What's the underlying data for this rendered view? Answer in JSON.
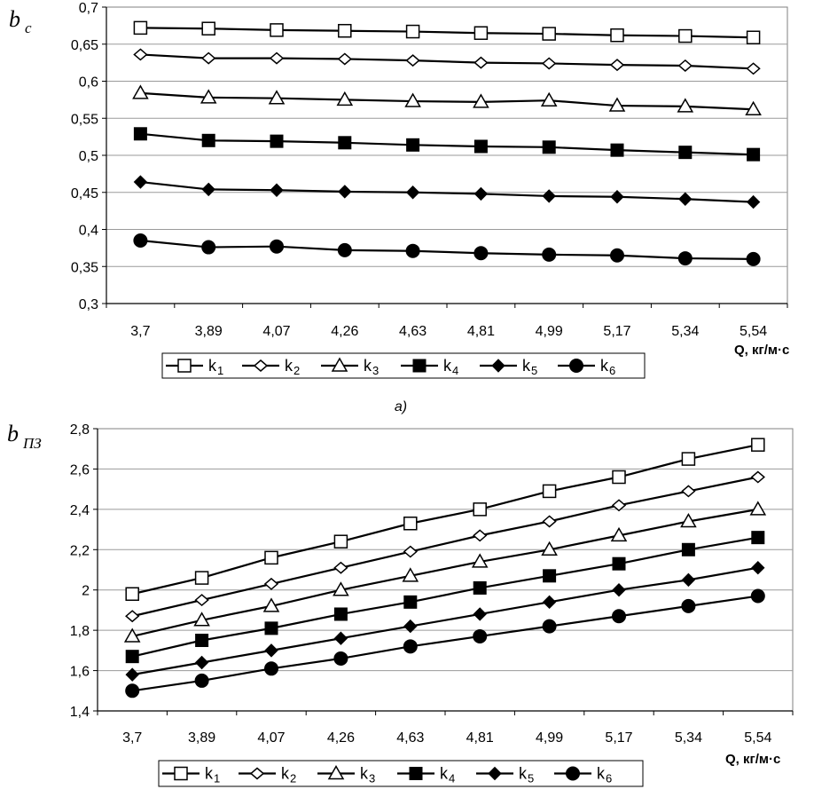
{
  "chart_data": [
    {
      "type": "line",
      "panel": "top",
      "ylabel_main": "b",
      "ylabel_sub": "c",
      "xlabel": "Q, кг/м·с",
      "caption": "а)",
      "categories": [
        "3,7",
        "3,89",
        "4,07",
        "4,26",
        "4,63",
        "4,81",
        "4,99",
        "5,17",
        "5,34",
        "5,54"
      ],
      "ylim": [
        0.3,
        0.7
      ],
      "yticks": [
        0.3,
        0.35,
        0.4,
        0.45,
        0.5,
        0.55,
        0.6,
        0.65,
        0.7
      ],
      "ytick_labels": [
        "0,3",
        "0,35",
        "0,4",
        "0,45",
        "0,5",
        "0,55",
        "0,6",
        "0,65",
        "0,7"
      ],
      "grid": "horizontal",
      "legend_position": "bottom",
      "series": [
        {
          "name": "k",
          "sub": "1",
          "marker": "square-open",
          "values": [
            0.672,
            0.671,
            0.669,
            0.668,
            0.667,
            0.665,
            0.664,
            0.662,
            0.661,
            0.659
          ]
        },
        {
          "name": "k",
          "sub": "2",
          "marker": "diamond-open",
          "values": [
            0.636,
            0.631,
            0.631,
            0.63,
            0.628,
            0.625,
            0.624,
            0.622,
            0.621,
            0.617
          ]
        },
        {
          "name": "k",
          "sub": "3",
          "marker": "triangle-open",
          "values": [
            0.584,
            0.578,
            0.577,
            0.575,
            0.573,
            0.572,
            0.574,
            0.567,
            0.566,
            0.562
          ]
        },
        {
          "name": "k",
          "sub": "4",
          "marker": "square-filled",
          "values": [
            0.529,
            0.52,
            0.519,
            0.517,
            0.514,
            0.512,
            0.511,
            0.507,
            0.504,
            0.501
          ]
        },
        {
          "name": "k",
          "sub": "5",
          "marker": "diamond-filled",
          "values": [
            0.464,
            0.454,
            0.453,
            0.451,
            0.45,
            0.448,
            0.445,
            0.444,
            0.441,
            0.437
          ]
        },
        {
          "name": "k",
          "sub": "6",
          "marker": "circle-filled",
          "values": [
            0.385,
            0.376,
            0.377,
            0.372,
            0.371,
            0.368,
            0.366,
            0.365,
            0.361,
            0.36
          ]
        }
      ]
    },
    {
      "type": "line",
      "panel": "bottom",
      "ylabel_main": "b",
      "ylabel_sub": "ПЗ",
      "xlabel": "Q, кг/м·с",
      "categories": [
        "3,7",
        "3,89",
        "4,07",
        "4,26",
        "4,63",
        "4,81",
        "4,99",
        "5,17",
        "5,34",
        "5,54"
      ],
      "ylim": [
        1.4,
        2.8
      ],
      "yticks": [
        1.4,
        1.6,
        1.8,
        2.0,
        2.2,
        2.4,
        2.6,
        2.8
      ],
      "ytick_labels": [
        "1,4",
        "1,6",
        "1,8",
        "2",
        "2,2",
        "2,4",
        "2,6",
        "2,8"
      ],
      "grid": "horizontal",
      "legend_position": "bottom",
      "series": [
        {
          "name": "k",
          "sub": "1",
          "marker": "square-open",
          "values": [
            1.98,
            2.06,
            2.16,
            2.24,
            2.33,
            2.4,
            2.49,
            2.56,
            2.65,
            2.72
          ]
        },
        {
          "name": "k",
          "sub": "2",
          "marker": "diamond-open",
          "values": [
            1.87,
            1.95,
            2.03,
            2.11,
            2.19,
            2.27,
            2.34,
            2.42,
            2.49,
            2.56
          ]
        },
        {
          "name": "k",
          "sub": "3",
          "marker": "triangle-open",
          "values": [
            1.77,
            1.85,
            1.92,
            2.0,
            2.07,
            2.14,
            2.2,
            2.27,
            2.34,
            2.4
          ]
        },
        {
          "name": "k",
          "sub": "4",
          "marker": "square-filled",
          "values": [
            1.67,
            1.75,
            1.81,
            1.88,
            1.94,
            2.01,
            2.07,
            2.13,
            2.2,
            2.26
          ]
        },
        {
          "name": "k",
          "sub": "5",
          "marker": "diamond-filled",
          "values": [
            1.58,
            1.64,
            1.7,
            1.76,
            1.82,
            1.88,
            1.94,
            2.0,
            2.05,
            2.11
          ]
        },
        {
          "name": "k",
          "sub": "6",
          "marker": "circle-filled",
          "values": [
            1.5,
            1.55,
            1.61,
            1.66,
            1.72,
            1.77,
            1.82,
            1.87,
            1.92,
            1.97
          ]
        }
      ]
    }
  ]
}
